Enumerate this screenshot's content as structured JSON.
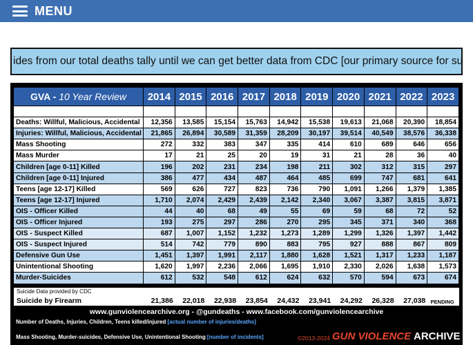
{
  "nav": {
    "menu_label": "MENU"
  },
  "ticker": {
    "text": "ides from our total deaths tally until we can get better data from CDC [our primary source for suicide reports]"
  },
  "table": {
    "title_bold": "GVA - ",
    "title_italic": "10 Year Review",
    "years": [
      "2014",
      "2015",
      "2016",
      "2017",
      "2018",
      "2019",
      "2020",
      "2021",
      "2022",
      "2023"
    ],
    "rows": [
      {
        "label": "Deaths: Willful, Malicious, Accidental",
        "values": [
          "12,356",
          "13,585",
          "15,154",
          "15,763",
          "14,942",
          "15,538",
          "19,613",
          "21,068",
          "20,390",
          "18,854"
        ]
      },
      {
        "label": "Injuries: Willful, Malicious, Accidental",
        "values": [
          "21,865",
          "26,894",
          "30,589",
          "31,359",
          "28,209",
          "30,197",
          "39,514",
          "40,549",
          "38,576",
          "36,338"
        ]
      },
      {
        "label": "Mass Shooting",
        "values": [
          "272",
          "332",
          "383",
          "347",
          "335",
          "414",
          "610",
          "689",
          "646",
          "656"
        ]
      },
      {
        "label": "Mass Murder",
        "values": [
          "17",
          "21",
          "25",
          "20",
          "19",
          "31",
          "21",
          "28",
          "36",
          "40"
        ]
      },
      {
        "label": "Children [age 0-11] Killed",
        "values": [
          "196",
          "202",
          "231",
          "234",
          "198",
          "211",
          "302",
          "312",
          "315",
          "297"
        ]
      },
      {
        "label": "Children [age 0-11] Injured",
        "values": [
          "386",
          "477",
          "434",
          "487",
          "464",
          "485",
          "699",
          "747",
          "681",
          "641"
        ]
      },
      {
        "label": "Teens [age 12-17] Killed",
        "values": [
          "569",
          "626",
          "727",
          "823",
          "736",
          "790",
          "1,091",
          "1,266",
          "1,379",
          "1,385"
        ]
      },
      {
        "label": "Teens [age 12-17] Injured",
        "values": [
          "1,710",
          "2,074",
          "2,429",
          "2,439",
          "2,142",
          "2,340",
          "3,067",
          "3,387",
          "3,815",
          "3,871"
        ]
      },
      {
        "label": "OIS - Officer Killed",
        "values": [
          "44",
          "40",
          "68",
          "49",
          "55",
          "69",
          "59",
          "68",
          "72",
          "52"
        ]
      },
      {
        "label": "OIS - Officer Injured",
        "values": [
          "193",
          "275",
          "297",
          "286",
          "270",
          "295",
          "345",
          "371",
          "340",
          "368"
        ]
      },
      {
        "label": "OIS - Suspect Killed",
        "values": [
          "687",
          "1,007",
          "1,152",
          "1,232",
          "1,273",
          "1,289",
          "1,299",
          "1,326",
          "1,397",
          "1,442"
        ]
      },
      {
        "label": "OIS - Suspect Injured",
        "values": [
          "514",
          "742",
          "779",
          "890",
          "883",
          "795",
          "927",
          "888",
          "867",
          "809"
        ]
      },
      {
        "label": "Defensive Gun Use",
        "values": [
          "1,451",
          "1,397",
          "1,991",
          "2,117",
          "1,880",
          "1,628",
          "1,521",
          "1,317",
          "1,233",
          "1,187"
        ]
      },
      {
        "label": "Unintentional Shooting",
        "values": [
          "1,620",
          "1,997",
          "2,236",
          "2,066",
          "1,695",
          "1,910",
          "2,330",
          "2,026",
          "1,638",
          "1,573"
        ]
      },
      {
        "label": "Murder-Suicides",
        "values": [
          "612",
          "532",
          "548",
          "612",
          "624",
          "632",
          "570",
          "594",
          "673",
          "674"
        ]
      }
    ]
  },
  "cdc": {
    "note": "Suicide Data provided by CDC",
    "label": "Suicide by Firearm",
    "values": [
      "21,386",
      "22,018",
      "22,938",
      "23,854",
      "24,432",
      "23,941",
      "24,292",
      "26,328",
      "27,038",
      "PENDING"
    ]
  },
  "footer": {
    "links": "www.gunviolencearchive.org  -  @gundeaths  -  www.facebook.com/gunviolencearchive",
    "legend1_text": "Number of Deaths, Injuries, Children, Teens  killed/injured ",
    "legend1_hl": "[actual number of injuries/deaths]",
    "legend2_text": "Mass Shooting, Murder-suicides, Defensive Use, Unintentional Shooting ",
    "legend2_hl": "[number of incidents]",
    "copyright": "©2013-2024 -",
    "brand_red": "GUN VIOLENCE",
    "brand_white": "ARCHIVE"
  },
  "colors": {
    "nav": "#3d6fb3",
    "header": "#2e5ea8",
    "row_blue": "#bcd7ee",
    "row_light_blue": "#dceaf6",
    "ticker": "#9fd1ee",
    "brand_red": "#e6452b"
  }
}
